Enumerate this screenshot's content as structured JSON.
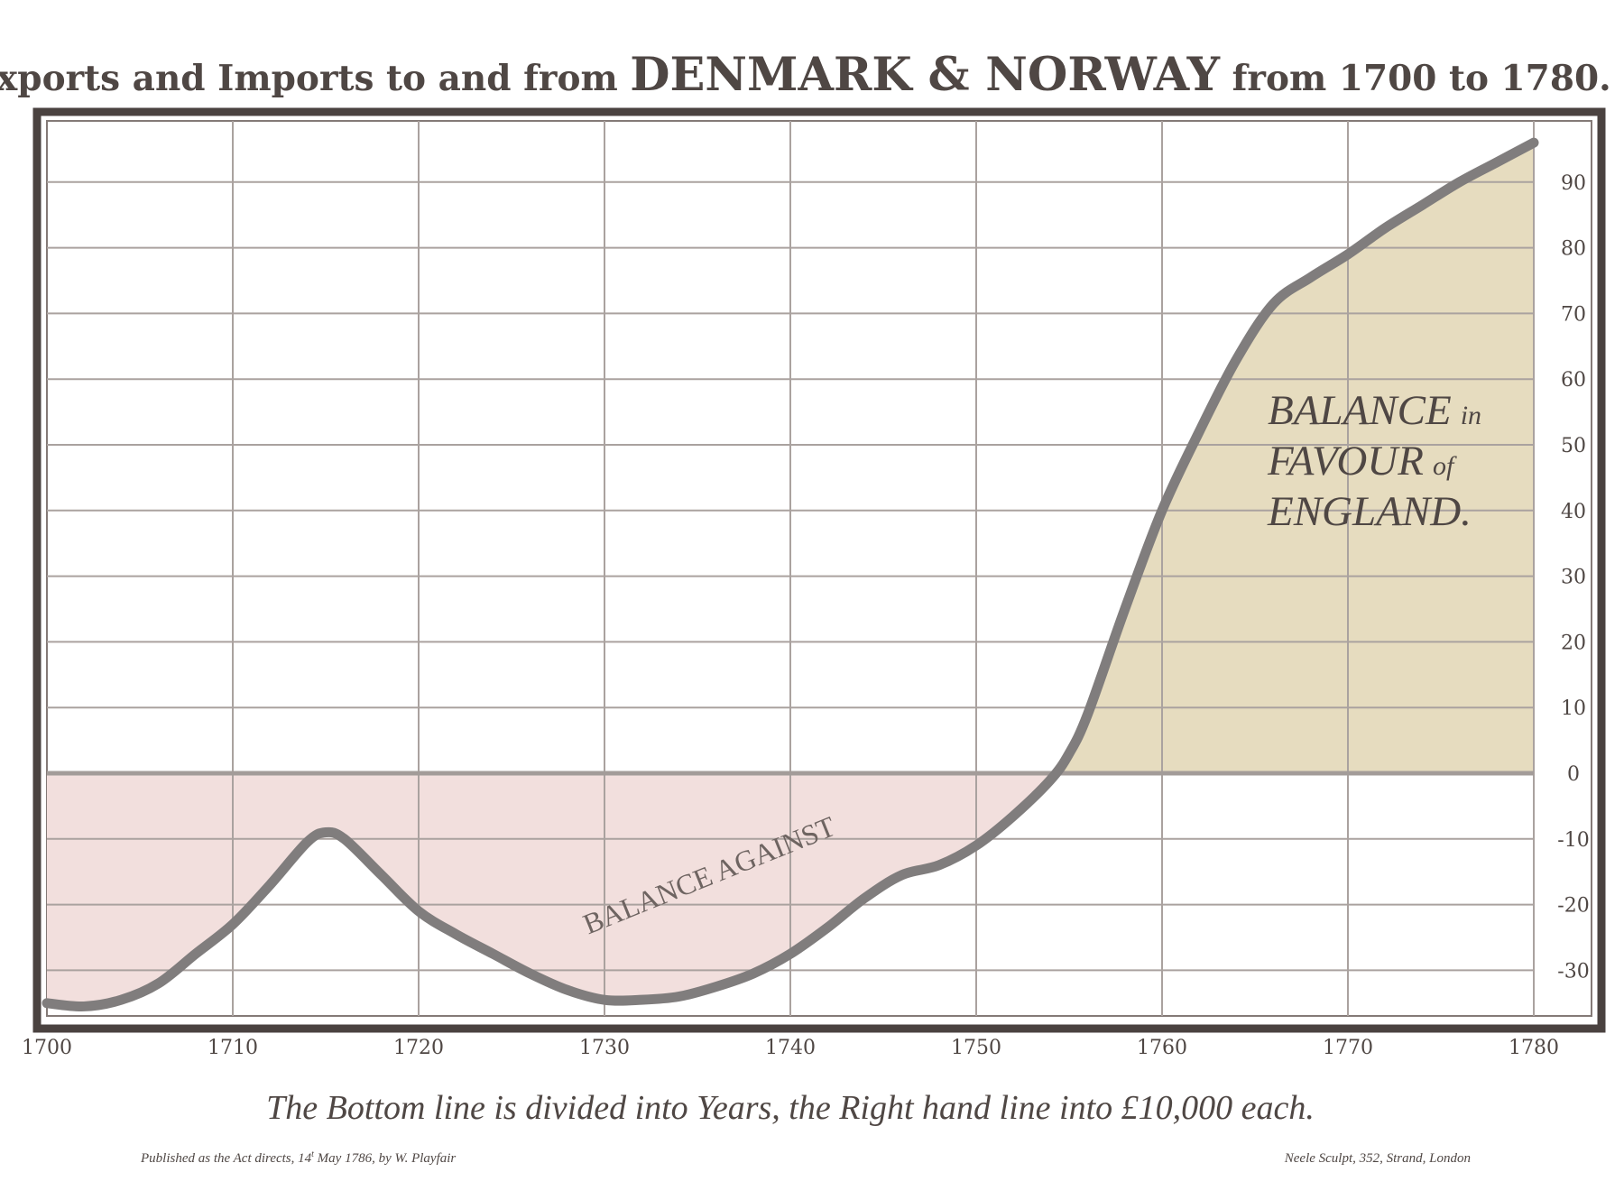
{
  "chart_data": {
    "type": "area",
    "title": {
      "prefix": "Exports and Imports to and from ",
      "emphasis": "DENMARK & NORWAY",
      "suffix": " from 1700 to 1780."
    },
    "x": [
      1700,
      1702,
      1704,
      1706,
      1708,
      1710,
      1712,
      1714,
      1715,
      1716,
      1718,
      1720,
      1722,
      1724,
      1726,
      1728,
      1730,
      1732,
      1734,
      1736,
      1738,
      1740,
      1742,
      1744,
      1746,
      1748,
      1750,
      1752,
      1754,
      1755,
      1756,
      1758,
      1760,
      1762,
      1764,
      1766,
      1768,
      1770,
      1772,
      1774,
      1776,
      1778,
      1780
    ],
    "series": [
      {
        "values": [
          -35,
          -35.5,
          -34.5,
          -32,
          -27.5,
          -23,
          -17,
          -10.5,
          -9,
          -10,
          -15.5,
          -21,
          -24.5,
          -27.5,
          -30.5,
          -33,
          -34.5,
          -34.5,
          -34,
          -32.5,
          -30.5,
          -27.5,
          -23.5,
          -19,
          -15.5,
          -14,
          -11,
          -6.5,
          -1,
          3,
          9,
          25,
          40,
          52,
          63,
          71.5,
          75.5,
          79,
          83,
          86.5,
          90,
          93,
          96
        ]
      }
    ],
    "xlim": [
      1700,
      1780
    ],
    "ylim": [
      -37,
      100
    ],
    "x_ticks": [
      1700,
      1710,
      1720,
      1730,
      1740,
      1750,
      1760,
      1770,
      1780
    ],
    "y_ticks": [
      90,
      80,
      70,
      60,
      50,
      40,
      30,
      20,
      10,
      0,
      -10,
      -20,
      -30
    ],
    "y_axis_side": "right",
    "grid": true,
    "annotations": {
      "favour_lines": [
        {
          "main": "BALANCE",
          "small": "in"
        },
        {
          "main": "FAVOUR",
          "small": "of"
        },
        {
          "main": "ENGLAND.",
          "small": ""
        }
      ],
      "against": "BALANCE AGAINST"
    },
    "caption": "The Bottom line is divided into Years, the Right hand line into £10,000 each.",
    "footnote_left": {
      "text": "Published as the Act directs, 14",
      "superscript": "t",
      "text_after": " May 1786, by W. Playfair"
    },
    "footnote_right": "Neele Sculpt, 352, Strand, London",
    "colors": {
      "favour_fill": "#e6dcbf",
      "against_fill": "#f2dfdd",
      "line": "#807d7d",
      "frame": "#4a4240",
      "grid": "#aaa29f",
      "text": "#4f4744"
    }
  }
}
